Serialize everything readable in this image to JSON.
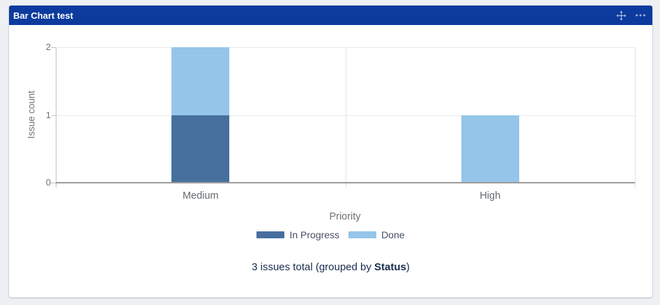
{
  "header": {
    "title": "Bar Chart test",
    "bg_color": "#0c3b9d",
    "icon_color": "#ffffff",
    "icons": [
      "move-icon",
      "ellipsis-icon"
    ]
  },
  "chart_data": {
    "type": "bar",
    "stacked": true,
    "categories": [
      "Medium",
      "High"
    ],
    "series": [
      {
        "name": "In Progress",
        "color": "#476f9e",
        "values": [
          1,
          0
        ]
      },
      {
        "name": "Done",
        "color": "#95c5e8",
        "values": [
          1,
          1
        ]
      }
    ],
    "title": "",
    "xlabel": "Priority",
    "ylabel": "Issue count",
    "ylim": [
      0,
      2
    ],
    "yticks": [
      0,
      1,
      2
    ],
    "grid": true,
    "legend_position": "bottom"
  },
  "footer": {
    "text_prefix": "3 issues total (grouped by ",
    "group_by": "Status",
    "text_suffix": ")"
  }
}
